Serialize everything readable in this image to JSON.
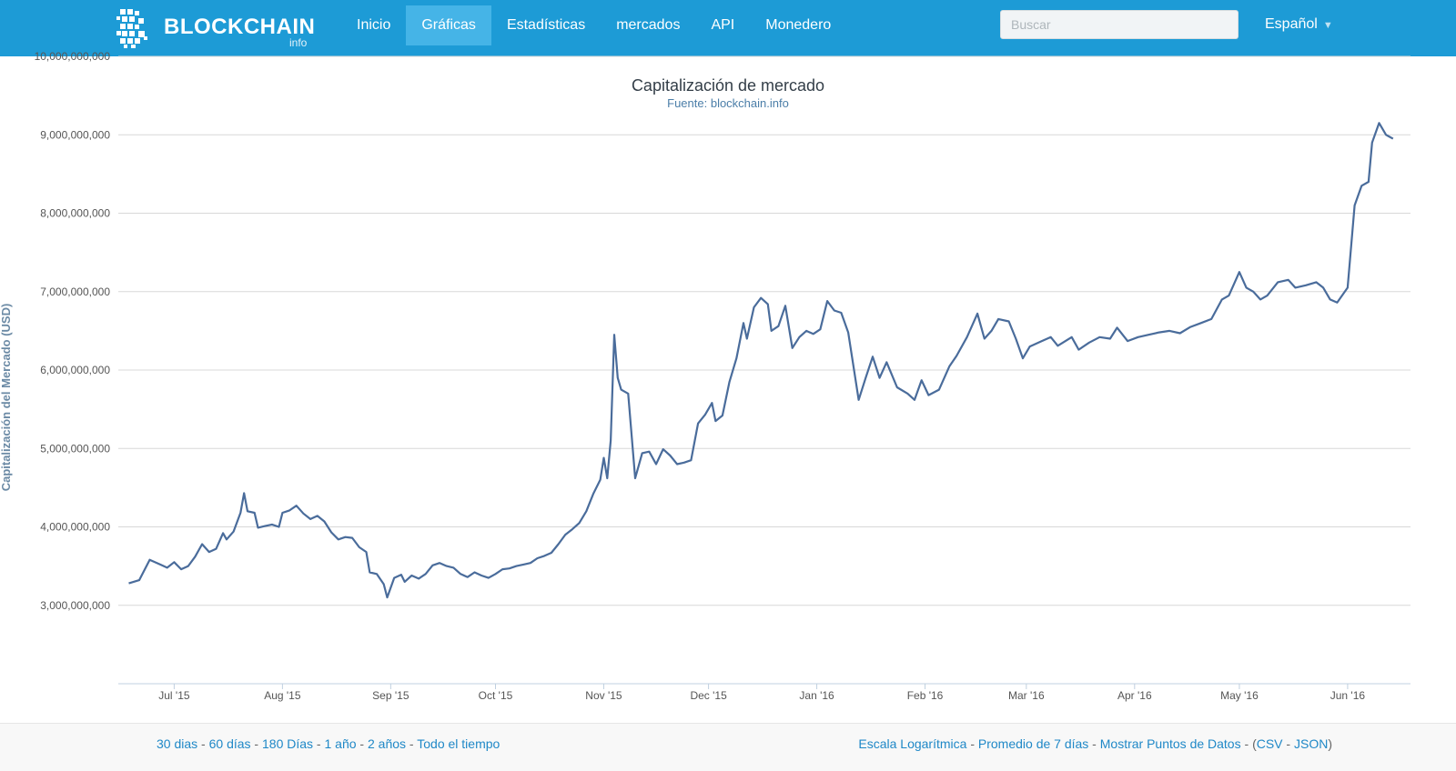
{
  "nav": {
    "brand": "BLOCKCHAIN",
    "brand_sub": "info",
    "items": [
      {
        "label": "Inicio"
      },
      {
        "label": "Gráficas"
      },
      {
        "label": "Estadísticas"
      },
      {
        "label": "mercados"
      },
      {
        "label": "API"
      },
      {
        "label": "Monedero"
      }
    ],
    "active_index": 1,
    "search_placeholder": "Buscar",
    "language": "Español"
  },
  "chart": {
    "title": "Capitalización de mercado",
    "subtitle": "Fuente: blockchain.info"
  },
  "chart_data": {
    "type": "line",
    "title": "Capitalización de mercado",
    "subtitle": "Fuente: blockchain.info",
    "ylabel": "Capitalización del Mercado (USD)",
    "xlabel": "",
    "ylim": [
      2000000000,
      10000000000
    ],
    "yticks": [
      "3,000,000,000",
      "4,000,000,000",
      "5,000,000,000",
      "6,000,000,000",
      "7,000,000,000",
      "8,000,000,000",
      "9,000,000,000",
      "10,000,000,000"
    ],
    "ytick_values": [
      3000000000,
      4000000000,
      5000000000,
      6000000000,
      7000000000,
      8000000000,
      9000000000,
      10000000000
    ],
    "xlim": [
      "2015-06-15",
      "2016-06-19"
    ],
    "xticks": [
      {
        "label": "Jul '15",
        "date": "2015-07-01"
      },
      {
        "label": "Aug '15",
        "date": "2015-08-01"
      },
      {
        "label": "Sep '15",
        "date": "2015-09-01"
      },
      {
        "label": "Oct '15",
        "date": "2015-10-01"
      },
      {
        "label": "Nov '15",
        "date": "2015-11-01"
      },
      {
        "label": "Dec '15",
        "date": "2015-12-01"
      },
      {
        "label": "Jan '16",
        "date": "2016-01-01"
      },
      {
        "label": "Feb '16",
        "date": "2016-02-01"
      },
      {
        "label": "Mar '16",
        "date": "2016-03-01"
      },
      {
        "label": "Apr '16",
        "date": "2016-04-01"
      },
      {
        "label": "May '16",
        "date": "2016-05-01"
      },
      {
        "label": "Jun '16",
        "date": "2016-06-01"
      }
    ],
    "grid": true,
    "series": [
      {
        "color": "#4a6c9b",
        "points": [
          [
            "2015-06-18",
            3280000000
          ],
          [
            "2015-06-21",
            3320000000
          ],
          [
            "2015-06-24",
            3580000000
          ],
          [
            "2015-06-27",
            3520000000
          ],
          [
            "2015-06-29",
            3480000000
          ],
          [
            "2015-07-01",
            3550000000
          ],
          [
            "2015-07-03",
            3460000000
          ],
          [
            "2015-07-05",
            3500000000
          ],
          [
            "2015-07-07",
            3620000000
          ],
          [
            "2015-07-09",
            3780000000
          ],
          [
            "2015-07-11",
            3680000000
          ],
          [
            "2015-07-13",
            3720000000
          ],
          [
            "2015-07-15",
            3920000000
          ],
          [
            "2015-07-16",
            3840000000
          ],
          [
            "2015-07-18",
            3940000000
          ],
          [
            "2015-07-20",
            4180000000
          ],
          [
            "2015-07-21",
            4430000000
          ],
          [
            "2015-07-22",
            4200000000
          ],
          [
            "2015-07-24",
            4180000000
          ],
          [
            "2015-07-25",
            3990000000
          ],
          [
            "2015-07-27",
            4010000000
          ],
          [
            "2015-07-29",
            4030000000
          ],
          [
            "2015-07-31",
            4000000000
          ],
          [
            "2015-08-01",
            4180000000
          ],
          [
            "2015-08-03",
            4210000000
          ],
          [
            "2015-08-05",
            4270000000
          ],
          [
            "2015-08-07",
            4170000000
          ],
          [
            "2015-08-09",
            4100000000
          ],
          [
            "2015-08-11",
            4140000000
          ],
          [
            "2015-08-13",
            4070000000
          ],
          [
            "2015-08-15",
            3930000000
          ],
          [
            "2015-08-17",
            3840000000
          ],
          [
            "2015-08-19",
            3870000000
          ],
          [
            "2015-08-21",
            3860000000
          ],
          [
            "2015-08-23",
            3740000000
          ],
          [
            "2015-08-25",
            3680000000
          ],
          [
            "2015-08-26",
            3420000000
          ],
          [
            "2015-08-28",
            3400000000
          ],
          [
            "2015-08-30",
            3270000000
          ],
          [
            "2015-08-31",
            3100000000
          ],
          [
            "2015-09-02",
            3350000000
          ],
          [
            "2015-09-04",
            3390000000
          ],
          [
            "2015-09-05",
            3300000000
          ],
          [
            "2015-09-07",
            3380000000
          ],
          [
            "2015-09-09",
            3340000000
          ],
          [
            "2015-09-11",
            3400000000
          ],
          [
            "2015-09-13",
            3510000000
          ],
          [
            "2015-09-15",
            3540000000
          ],
          [
            "2015-09-17",
            3500000000
          ],
          [
            "2015-09-19",
            3480000000
          ],
          [
            "2015-09-21",
            3400000000
          ],
          [
            "2015-09-23",
            3360000000
          ],
          [
            "2015-09-25",
            3420000000
          ],
          [
            "2015-09-27",
            3380000000
          ],
          [
            "2015-09-29",
            3350000000
          ],
          [
            "2015-10-01",
            3400000000
          ],
          [
            "2015-10-03",
            3460000000
          ],
          [
            "2015-10-05",
            3470000000
          ],
          [
            "2015-10-07",
            3500000000
          ],
          [
            "2015-10-09",
            3520000000
          ],
          [
            "2015-10-11",
            3540000000
          ],
          [
            "2015-10-13",
            3600000000
          ],
          [
            "2015-10-15",
            3630000000
          ],
          [
            "2015-10-17",
            3670000000
          ],
          [
            "2015-10-19",
            3780000000
          ],
          [
            "2015-10-21",
            3900000000
          ],
          [
            "2015-10-23",
            3970000000
          ],
          [
            "2015-10-25",
            4050000000
          ],
          [
            "2015-10-27",
            4200000000
          ],
          [
            "2015-10-29",
            4420000000
          ],
          [
            "2015-10-31",
            4600000000
          ],
          [
            "2015-11-01",
            4880000000
          ],
          [
            "2015-11-02",
            4620000000
          ],
          [
            "2015-11-03",
            5100000000
          ],
          [
            "2015-11-04",
            6450000000
          ],
          [
            "2015-11-05",
            5900000000
          ],
          [
            "2015-11-06",
            5750000000
          ],
          [
            "2015-11-08",
            5700000000
          ],
          [
            "2015-11-10",
            4620000000
          ],
          [
            "2015-11-12",
            4940000000
          ],
          [
            "2015-11-14",
            4960000000
          ],
          [
            "2015-11-16",
            4800000000
          ],
          [
            "2015-11-18",
            4990000000
          ],
          [
            "2015-11-20",
            4910000000
          ],
          [
            "2015-11-22",
            4800000000
          ],
          [
            "2015-11-24",
            4820000000
          ],
          [
            "2015-11-26",
            4850000000
          ],
          [
            "2015-11-28",
            5320000000
          ],
          [
            "2015-11-30",
            5430000000
          ],
          [
            "2015-12-02",
            5580000000
          ],
          [
            "2015-12-03",
            5350000000
          ],
          [
            "2015-12-05",
            5420000000
          ],
          [
            "2015-12-07",
            5850000000
          ],
          [
            "2015-12-09",
            6150000000
          ],
          [
            "2015-12-11",
            6600000000
          ],
          [
            "2015-12-12",
            6400000000
          ],
          [
            "2015-12-14",
            6800000000
          ],
          [
            "2015-12-16",
            6920000000
          ],
          [
            "2015-12-18",
            6840000000
          ],
          [
            "2015-12-19",
            6500000000
          ],
          [
            "2015-12-21",
            6560000000
          ],
          [
            "2015-12-23",
            6820000000
          ],
          [
            "2015-12-25",
            6280000000
          ],
          [
            "2015-12-27",
            6420000000
          ],
          [
            "2015-12-29",
            6500000000
          ],
          [
            "2015-12-31",
            6460000000
          ],
          [
            "2016-01-02",
            6520000000
          ],
          [
            "2016-01-04",
            6880000000
          ],
          [
            "2016-01-06",
            6760000000
          ],
          [
            "2016-01-08",
            6730000000
          ],
          [
            "2016-01-10",
            6480000000
          ],
          [
            "2016-01-13",
            5620000000
          ],
          [
            "2016-01-15",
            5900000000
          ],
          [
            "2016-01-17",
            6170000000
          ],
          [
            "2016-01-19",
            5900000000
          ],
          [
            "2016-01-21",
            6100000000
          ],
          [
            "2016-01-24",
            5780000000
          ],
          [
            "2016-01-27",
            5700000000
          ],
          [
            "2016-01-29",
            5620000000
          ],
          [
            "2016-01-31",
            5870000000
          ],
          [
            "2016-02-02",
            5680000000
          ],
          [
            "2016-02-05",
            5750000000
          ],
          [
            "2016-02-08",
            6050000000
          ],
          [
            "2016-02-10",
            6180000000
          ],
          [
            "2016-02-13",
            6420000000
          ],
          [
            "2016-02-16",
            6720000000
          ],
          [
            "2016-02-18",
            6400000000
          ],
          [
            "2016-02-20",
            6500000000
          ],
          [
            "2016-02-22",
            6650000000
          ],
          [
            "2016-02-25",
            6620000000
          ],
          [
            "2016-02-27",
            6400000000
          ],
          [
            "2016-02-29",
            6150000000
          ],
          [
            "2016-03-02",
            6300000000
          ],
          [
            "2016-03-05",
            6360000000
          ],
          [
            "2016-03-08",
            6420000000
          ],
          [
            "2016-03-10",
            6310000000
          ],
          [
            "2016-03-14",
            6420000000
          ],
          [
            "2016-03-16",
            6260000000
          ],
          [
            "2016-03-19",
            6350000000
          ],
          [
            "2016-03-22",
            6420000000
          ],
          [
            "2016-03-25",
            6400000000
          ],
          [
            "2016-03-27",
            6540000000
          ],
          [
            "2016-03-30",
            6370000000
          ],
          [
            "2016-04-02",
            6420000000
          ],
          [
            "2016-04-05",
            6450000000
          ],
          [
            "2016-04-08",
            6480000000
          ],
          [
            "2016-04-11",
            6500000000
          ],
          [
            "2016-04-14",
            6470000000
          ],
          [
            "2016-04-17",
            6550000000
          ],
          [
            "2016-04-20",
            6600000000
          ],
          [
            "2016-04-23",
            6650000000
          ],
          [
            "2016-04-26",
            6900000000
          ],
          [
            "2016-04-28",
            6950000000
          ],
          [
            "2016-05-01",
            7250000000
          ],
          [
            "2016-05-03",
            7050000000
          ],
          [
            "2016-05-05",
            7000000000
          ],
          [
            "2016-05-07",
            6900000000
          ],
          [
            "2016-05-09",
            6950000000
          ],
          [
            "2016-05-12",
            7120000000
          ],
          [
            "2016-05-15",
            7150000000
          ],
          [
            "2016-05-17",
            7050000000
          ],
          [
            "2016-05-20",
            7080000000
          ],
          [
            "2016-05-23",
            7120000000
          ],
          [
            "2016-05-25",
            7050000000
          ],
          [
            "2016-05-27",
            6900000000
          ],
          [
            "2016-05-29",
            6860000000
          ],
          [
            "2016-06-01",
            7050000000
          ],
          [
            "2016-06-03",
            8100000000
          ],
          [
            "2016-06-05",
            8350000000
          ],
          [
            "2016-06-07",
            8400000000
          ],
          [
            "2016-06-08",
            8900000000
          ],
          [
            "2016-06-10",
            9150000000
          ],
          [
            "2016-06-12",
            9000000000
          ],
          [
            "2016-06-14",
            8950000000
          ]
        ]
      }
    ]
  },
  "footer": {
    "left_links": [
      "30 dias",
      "60 días",
      "180 Días",
      "1 año",
      "2 años",
      "Todo el tiempo"
    ],
    "right_links": [
      "Escala Logarítmica",
      "Promedio de 7 días",
      "Mostrar Puntos de Datos"
    ],
    "export_links": [
      "CSV",
      "JSON"
    ],
    "separator": " - "
  },
  "colors": {
    "navbar": "#1d9bd6",
    "nav_active": "#45b4e7",
    "line": "#4a6c9b",
    "link": "#1f88c7"
  }
}
